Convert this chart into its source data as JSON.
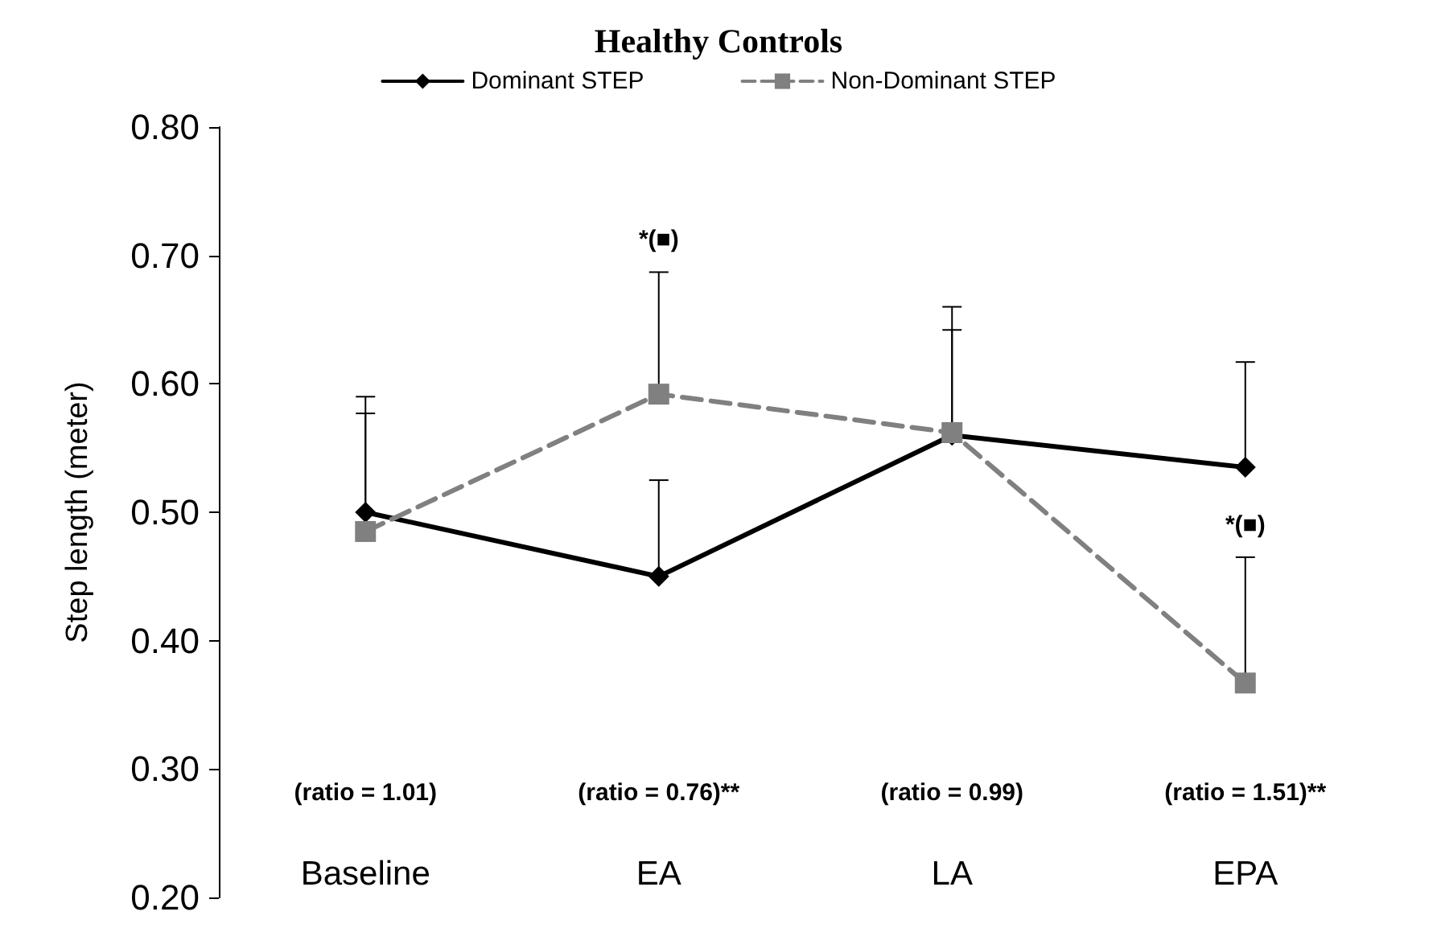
{
  "chart_data": {
    "type": "line",
    "title": "Healthy Controls",
    "ylabel": "Step length (meter)",
    "categories": [
      "Baseline",
      "EA",
      "LA",
      "EPA"
    ],
    "series": [
      {
        "name": "Dominant STEP",
        "color": "#000000",
        "values": [
          0.5,
          0.45,
          0.56,
          0.535
        ],
        "marker": "diamond",
        "line_style": "solid",
        "errors": [
          [
            0.5,
            0.59
          ],
          [
            0.45,
            0.525
          ],
          [
            0.56,
            0.66
          ],
          [
            0.535,
            0.617
          ]
        ]
      },
      {
        "name": "Non-Dominant STEP",
        "color": "#808080",
        "values": [
          0.485,
          0.592,
          0.562,
          0.367
        ],
        "marker": "square",
        "line_style": "dashed",
        "errors": [
          [
            0.485,
            0.577
          ],
          [
            0.592,
            0.687
          ],
          [
            0.562,
            0.642
          ],
          [
            0.367,
            0.465
          ]
        ]
      }
    ],
    "ylim": [
      0.2,
      0.8
    ],
    "yticks": [
      {
        "value": 0.2,
        "label": "0.20"
      },
      {
        "value": 0.3,
        "label": "0.30"
      },
      {
        "value": 0.4,
        "label": "0.40"
      },
      {
        "value": 0.5,
        "label": "0.50"
      },
      {
        "value": 0.6,
        "label": "0.60"
      },
      {
        "value": 0.7,
        "label": "0.70"
      },
      {
        "value": 0.8,
        "label": "0.80"
      }
    ],
    "grid": false,
    "legend": "top",
    "annotations": [
      {
        "text": "*(■)",
        "x": "EA",
        "y": 0.687
      },
      {
        "text": "*(■)",
        "x": "EPA",
        "y": 0.465
      },
      "(ratio = 1.01)",
      "(ratio = 0.76)**",
      "(ratio = 0.99)",
      "(ratio = 1.51)**"
    ]
  }
}
